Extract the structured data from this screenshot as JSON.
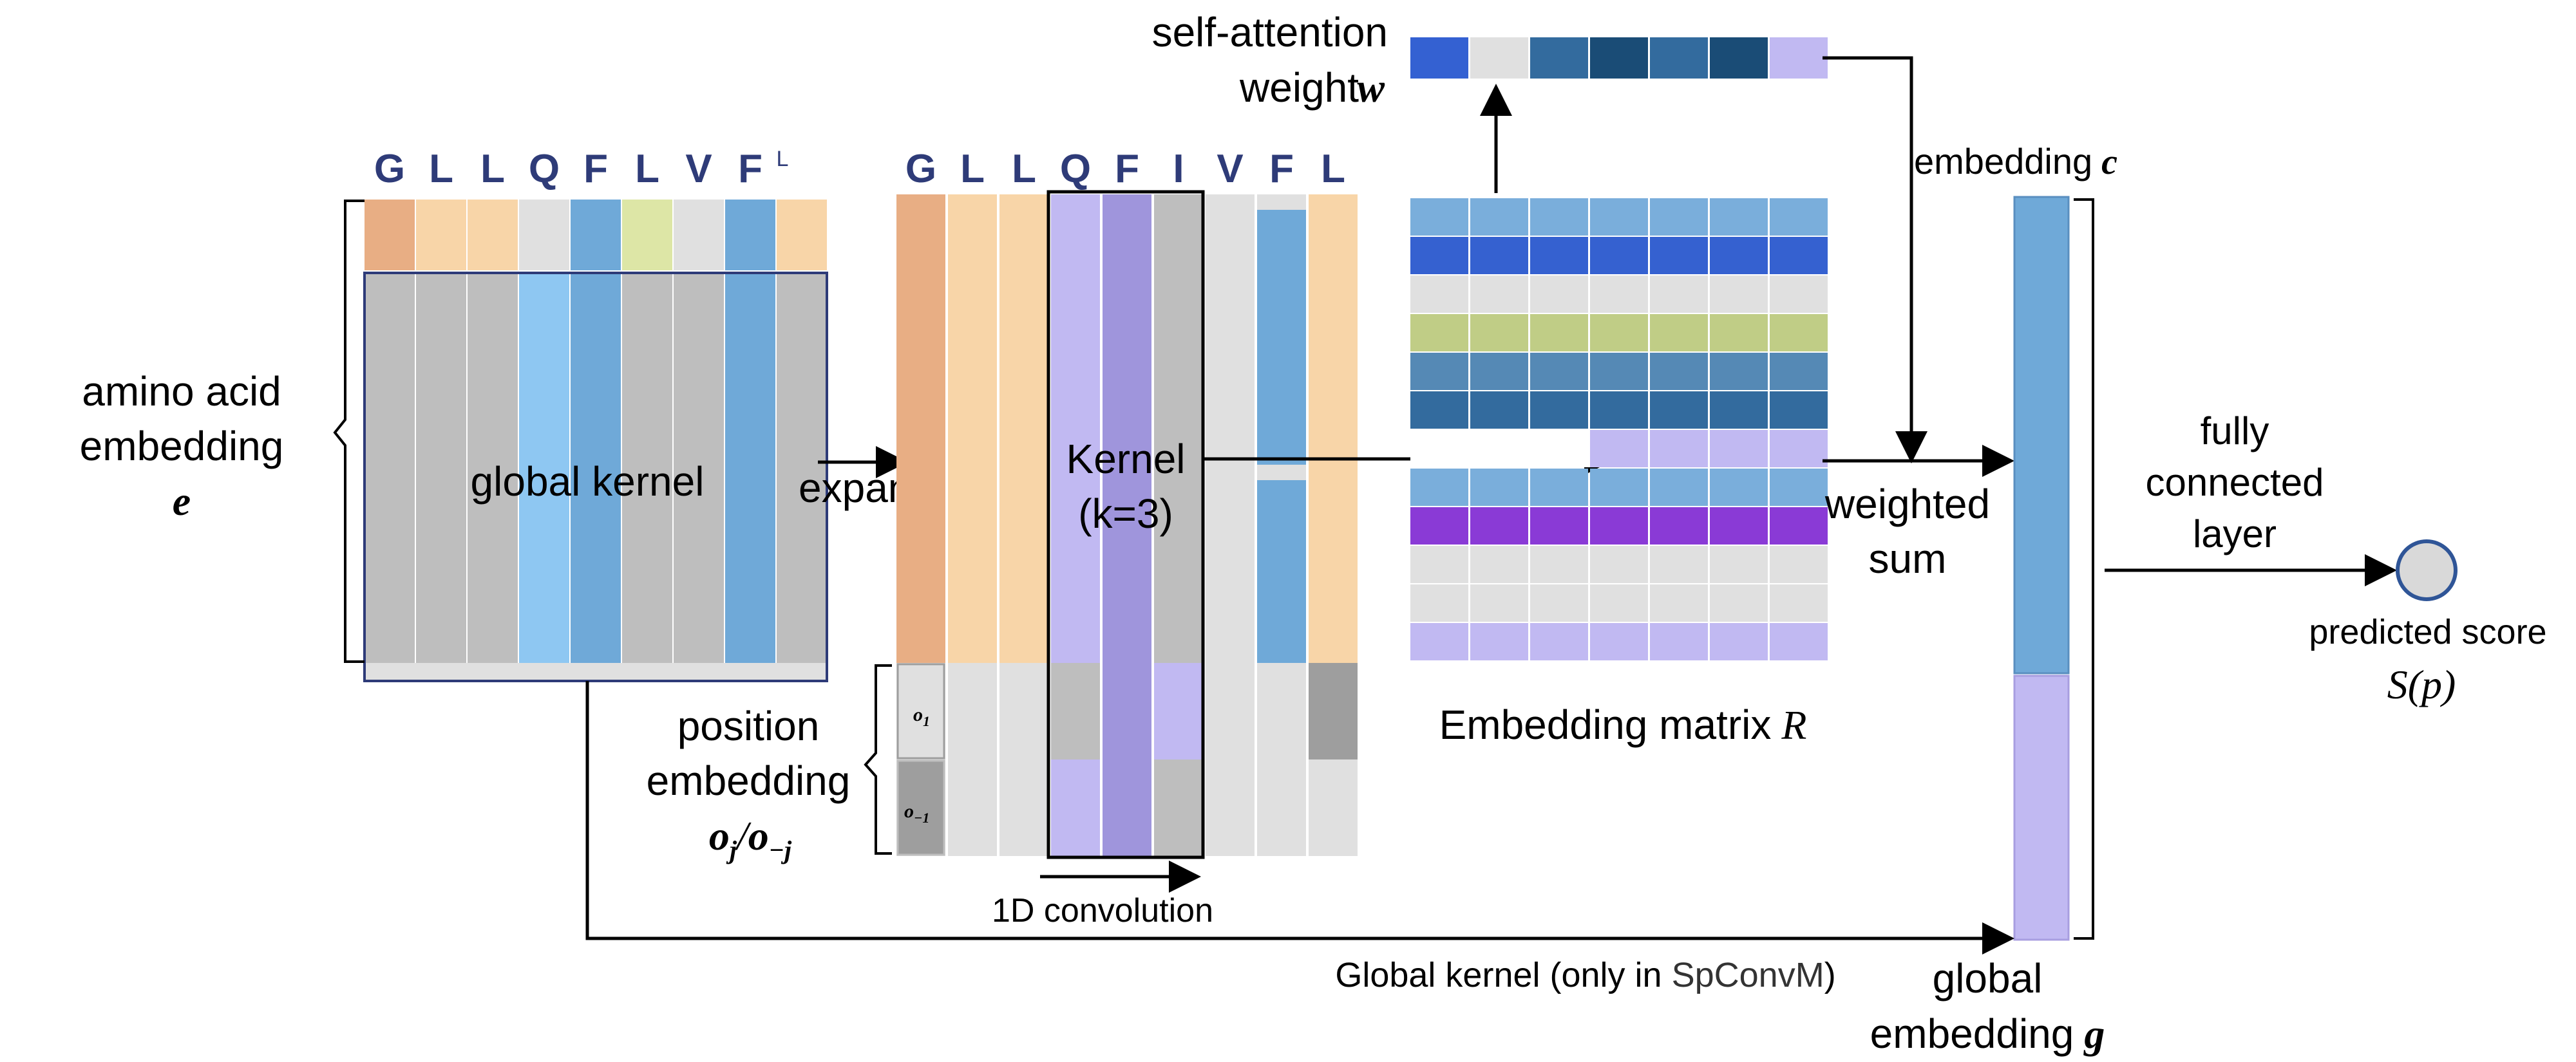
{
  "sequences": {
    "input": [
      "G",
      "L",
      "L",
      "Q",
      "F",
      "L",
      "V",
      "F",
      "L"
    ],
    "expanded": [
      "G",
      "L",
      "L",
      "Q",
      "F",
      "I",
      "V",
      "F",
      "L"
    ]
  },
  "labels": {
    "amino_acid": [
      "amino acid",
      "embedding"
    ],
    "amino_acid_symbol": "e",
    "global_kernel": "global kernel",
    "expand": "expand",
    "kernel": [
      "Kernel",
      "(k=3)"
    ],
    "position_embedding": [
      "position",
      "embedding"
    ],
    "position_symbol_left": "o",
    "position_symbol_left_sub": "j",
    "position_symbol_sep": "/",
    "position_symbol_right": "o",
    "position_symbol_right_sub": "−j",
    "o1": "o",
    "o1_sub": "1",
    "o_neg1": "o",
    "o_neg1_sub": "−1",
    "conv1d": "1D convolution",
    "self_attention": [
      "self-attention",
      "weight"
    ],
    "self_attention_symbol": "w",
    "embedding_matrix": "Embedding matrix",
    "embedding_matrix_symbol": "R",
    "weighted_sum": [
      "weighted",
      "sum"
    ],
    "embedding_c": "embedding",
    "embedding_c_symbol": "c",
    "global_embedding": [
      "global",
      "embedding"
    ],
    "global_embedding_symbol": "g",
    "fully_connected": [
      "fully",
      "connected",
      "layer"
    ],
    "predicted_score": "predicted score",
    "score_symbol": "S(p)",
    "global_kernel_note_prefix": "Global kernel (only in ",
    "global_kernel_note_model": "SpConvM",
    "global_kernel_note_suffix": ")"
  },
  "colors": {
    "letters": "#2e3b78",
    "orange": "#e8ae84",
    "peach": "#f8d5a8",
    "light_gray": "#e0e0e0",
    "mid_gray": "#bebebe",
    "dark_gray": "#9e9e9e",
    "blue": "#6fa9d8",
    "light_blue": "#8ec7f2",
    "lime": "#dde6a6",
    "lavender": "#c1b9f2",
    "purple_mid": "#9f95dc",
    "attention": [
      "#3461d2",
      "#e0e0e0",
      "#336b9e",
      "#1a4c76",
      "#336b9e",
      "#1a4c76",
      "#c1b9f2"
    ],
    "matrix_rows": [
      "#7aaedb",
      "#3561d0",
      "#e0e0e0",
      "#c0cd86",
      "#5589b5",
      "#336b9e",
      "#c1b9f2",
      "#7aaedb",
      "#8a3ad6",
      "#e0e0e0",
      "#e0e0e0",
      "#c1b9f2"
    ],
    "score_circle": "#d9d9d9"
  }
}
